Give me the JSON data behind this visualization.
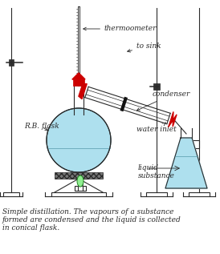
{
  "caption_line1": "Simple distillation. The vapours of a substance",
  "caption_line2": "formed are condensed and the liquid is collected",
  "caption_line3": "in conical flask.",
  "bg_color": "#ffffff",
  "line_color": "#2a2a2a",
  "red_color": "#cc0000",
  "flask_fill": "#aee0ee",
  "conical_fill": "#aee0ee",
  "flame_color": "#90ee90",
  "flame_edge": "#228822",
  "gauze_color": "#888888",
  "label_thermometer": "thermoometer",
  "label_to_sink": "to sink",
  "label_condenser": "condenser",
  "label_water_inlet": "water inlet",
  "label_rb_flask": "R.B. flask",
  "label_liquid": "liquid\nsubstance",
  "caption_font_size": 6.5,
  "label_font_size": 6.5
}
